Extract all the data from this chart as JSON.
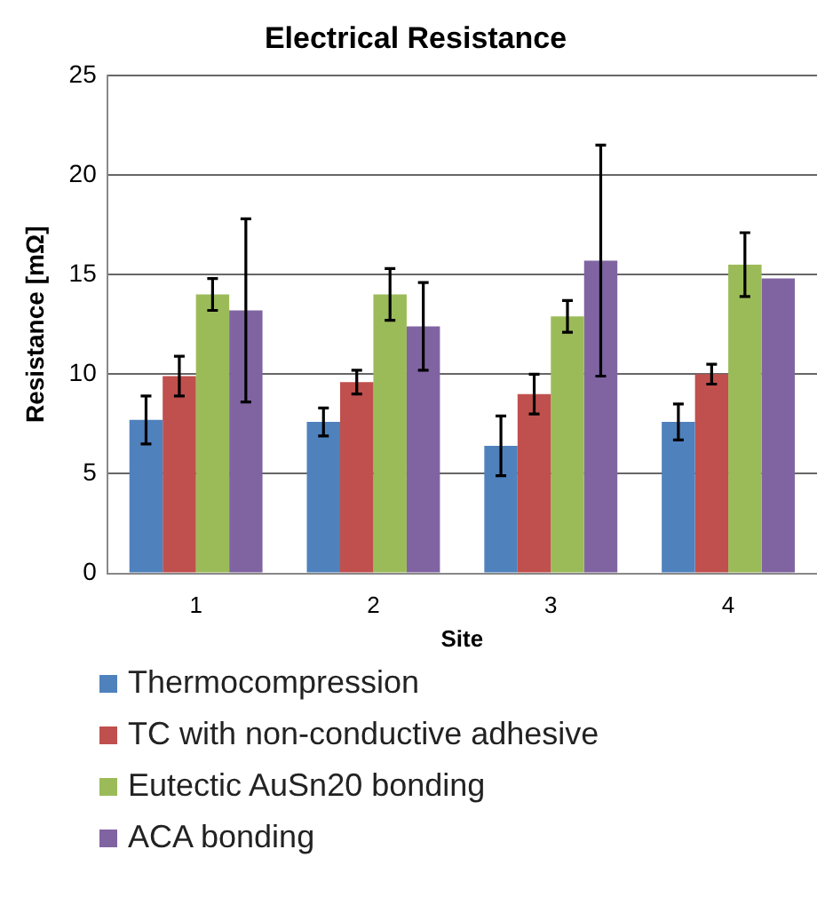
{
  "chart_data": {
    "type": "bar",
    "title": "Electrical Resistance",
    "xlabel": "Site",
    "ylabel": "Resistance [mΩ]",
    "categories": [
      "1",
      "2",
      "3",
      "4"
    ],
    "series": [
      {
        "name": "Thermocompression",
        "color": "#4f81bd",
        "values": [
          7.7,
          7.6,
          6.4,
          7.6
        ],
        "errors": [
          1.2,
          0.7,
          1.5,
          0.9
        ]
      },
      {
        "name": "TC with non-conductive adhesive",
        "color": "#c0504d",
        "values": [
          9.9,
          9.6,
          9.0,
          10.0
        ],
        "errors": [
          1.0,
          0.6,
          1.0,
          0.5
        ]
      },
      {
        "name": "Eutectic AuSn20 bonding",
        "color": "#9bbb59",
        "values": [
          14.0,
          14.0,
          12.9,
          15.5
        ],
        "errors": [
          0.8,
          1.3,
          0.8,
          1.6
        ]
      },
      {
        "name": "ACA bonding",
        "color": "#8064a2",
        "values": [
          13.2,
          12.4,
          15.7,
          14.8
        ],
        "errors": [
          4.6,
          2.2,
          5.8,
          null
        ]
      }
    ],
    "ylim": [
      0,
      25
    ],
    "yticks": [
      0,
      5,
      10,
      15,
      20,
      25
    ],
    "grid": "y",
    "legend": "bottom"
  }
}
